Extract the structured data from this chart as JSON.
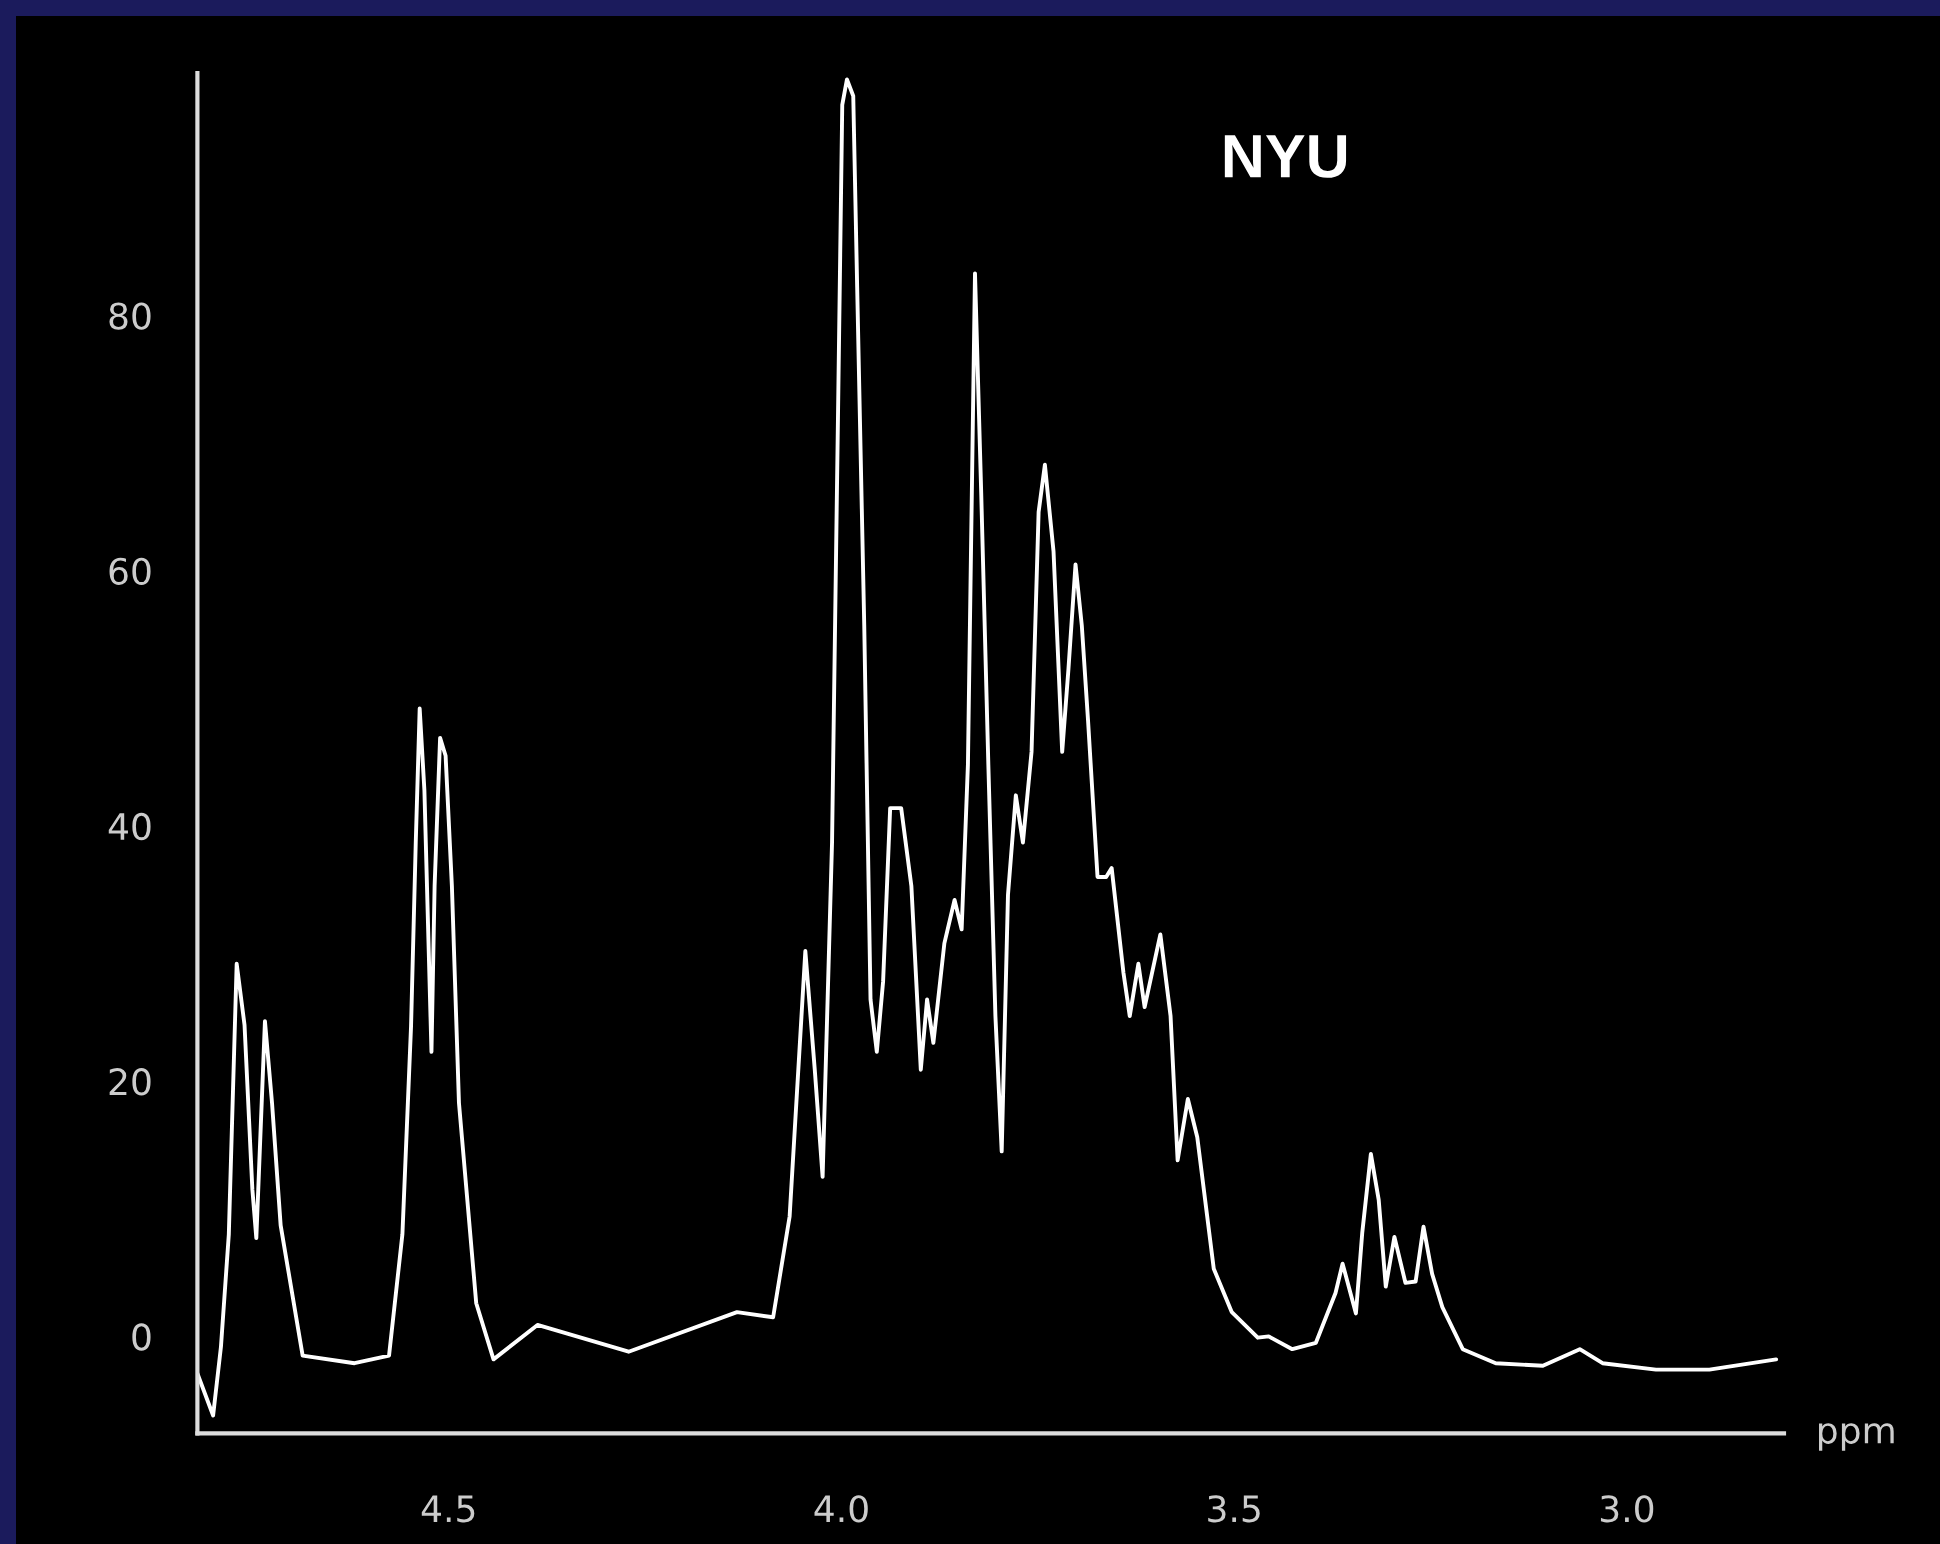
{
  "chart_data": {
    "type": "line",
    "xlabel": "ppm",
    "annotations": [
      "NYU"
    ],
    "xlim": [
      4.82,
      2.8
    ],
    "ylim": [
      -7.6,
      99
    ],
    "xticks": [
      {
        "value": 4.5,
        "label": "4.5"
      },
      {
        "value": 4.0,
        "label": "4.0"
      },
      {
        "value": 3.5,
        "label": "3.5"
      },
      {
        "value": 3.0,
        "label": "3.0"
      }
    ],
    "yticks": [
      0,
      20,
      40,
      60,
      80
    ],
    "grid": false,
    "legend": false,
    "series": [
      {
        "color": "#ffffff",
        "x": [
          4.82,
          4.8,
          4.79,
          4.78,
          4.77,
          4.76,
          4.75,
          4.745,
          4.734,
          4.725,
          4.714,
          4.686,
          4.62,
          4.576,
          4.559,
          4.548,
          4.542,
          4.537,
          4.531,
          4.522,
          4.518,
          4.511,
          4.504,
          4.496,
          4.487,
          4.465,
          4.443,
          4.387,
          4.271,
          4.133,
          4.087,
          4.066,
          4.046,
          4.034,
          4.024,
          4.012,
          4.004,
          3.999,
          3.993,
          3.985,
          3.98,
          3.971,
          3.963,
          3.955,
          3.947,
          3.938,
          3.924,
          3.911,
          3.899,
          3.891,
          3.883,
          3.869,
          3.856,
          3.847,
          3.839,
          3.83,
          3.822,
          3.813,
          3.804,
          3.796,
          3.788,
          3.778,
          3.769,
          3.758,
          3.749,
          3.741,
          3.73,
          3.719,
          3.711,
          3.702,
          3.694,
          3.686,
          3.674,
          3.663,
          3.656,
          3.641,
          3.633,
          3.622,
          3.614,
          3.594,
          3.581,
          3.572,
          3.559,
          3.547,
          3.526,
          3.503,
          3.47,
          3.456,
          3.426,
          3.396,
          3.371,
          3.362,
          3.345,
          3.337,
          3.326,
          3.316,
          3.307,
          3.296,
          3.282,
          3.269,
          3.259,
          3.248,
          3.235,
          3.209,
          3.167,
          3.107,
          3.06,
          3.031,
          2.963,
          2.895,
          2.81
        ],
        "values": [
          -2.9,
          -6.2,
          -0.8,
          8.0,
          29.2,
          24.4,
          11.5,
          7.7,
          24.7,
          18.3,
          8.7,
          -1.5,
          -2.1,
          -1.5,
          8.0,
          24.3,
          38.7,
          49.2,
          42.8,
          22.3,
          35.3,
          46.9,
          45.5,
          35.3,
          18.3,
          2.6,
          -1.8,
          0.9,
          -1.2,
          1.9,
          1.5,
          9.4,
          30.2,
          20.9,
          12.5,
          38.7,
          74.0,
          96.5,
          98.5,
          97.2,
          82.2,
          55.7,
          26.4,
          22.3,
          27.8,
          41.4,
          41.4,
          35.3,
          20.9,
          26.4,
          23.0,
          30.8,
          34.2,
          31.9,
          44.8,
          83.3,
          65.9,
          44.8,
          25.1,
          14.5,
          34.6,
          42.4,
          38.7,
          45.8,
          64.6,
          68.3,
          61.5,
          45.8,
          52.3,
          60.5,
          55.7,
          48.2,
          36.0,
          36.0,
          36.7,
          28.5,
          25.1,
          29.2,
          25.8,
          31.5,
          25.1,
          13.8,
          18.6,
          15.6,
          5.3,
          1.9,
          -0.1,
          0.0,
          -1.0,
          -0.5,
          3.4,
          5.7,
          1.8,
          8.1,
          14.3,
          10.7,
          3.9,
          7.8,
          4.2,
          4.3,
          8.6,
          4.9,
          2.3,
          -1.0,
          -2.1,
          -2.3,
          -1.0,
          -2.1,
          -2.6,
          -2.6,
          -1.8
        ]
      }
    ]
  }
}
